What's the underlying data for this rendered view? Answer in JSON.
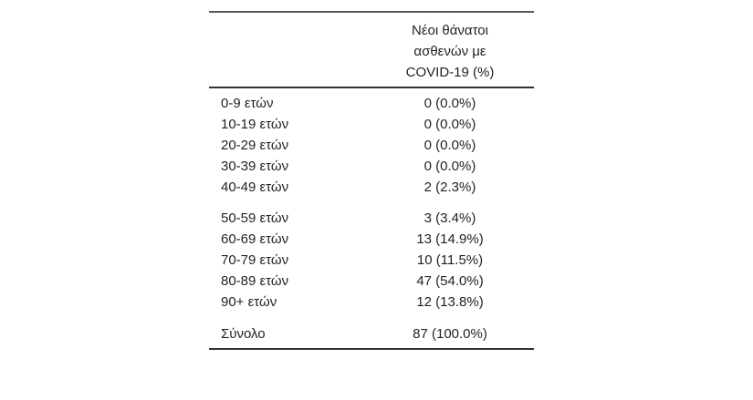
{
  "colors": {
    "text": "#232323",
    "rule_top": "#57585a",
    "rule": "#343436",
    "background": "#ffffff"
  },
  "table": {
    "header": {
      "lines": [
        "Νέοι θάνατοι",
        "ασθενών με",
        "COVID-19 (%)"
      ]
    },
    "groups": [
      {
        "rows": [
          {
            "label": "0-9 ετών",
            "value": "0 (0.0%)"
          },
          {
            "label": "10-19 ετών",
            "value": "0 (0.0%)"
          },
          {
            "label": "20-29 ετών",
            "value": "0 (0.0%)"
          },
          {
            "label": "30-39 ετών",
            "value": "0 (0.0%)"
          },
          {
            "label": "40-49 ετών",
            "value": "2 (2.3%)"
          }
        ]
      },
      {
        "rows": [
          {
            "label": "50-59 ετών",
            "value": "3 (3.4%)"
          },
          {
            "label": "60-69 ετών",
            "value": "13 (14.9%)"
          },
          {
            "label": "70-79 ετών",
            "value": "10 (11.5%)"
          },
          {
            "label": "80-89 ετών",
            "value": "47 (54.0%)"
          },
          {
            "label": "90+ ετών",
            "value": "12 (13.8%)"
          }
        ]
      }
    ],
    "total": {
      "label": "Σύνολο",
      "value": "87 (100.0%)"
    }
  },
  "chart_data": {
    "type": "table",
    "column_header": "Νέοι θάνατοι ασθενών με COVID-19 (%)",
    "categories": [
      "0-9 ετών",
      "10-19 ετών",
      "20-29 ετών",
      "30-39 ετών",
      "40-49 ετών",
      "50-59 ετών",
      "60-69 ετών",
      "70-79 ετών",
      "80-89 ετών",
      "90+ ετών"
    ],
    "deaths": [
      0,
      0,
      0,
      0,
      2,
      3,
      13,
      10,
      47,
      12
    ],
    "percent": [
      0.0,
      0.0,
      0.0,
      0.0,
      2.3,
      3.4,
      14.9,
      11.5,
      54.0,
      13.8
    ],
    "total_label": "Σύνολο",
    "total_deaths": 87,
    "total_percent": 100.0
  }
}
